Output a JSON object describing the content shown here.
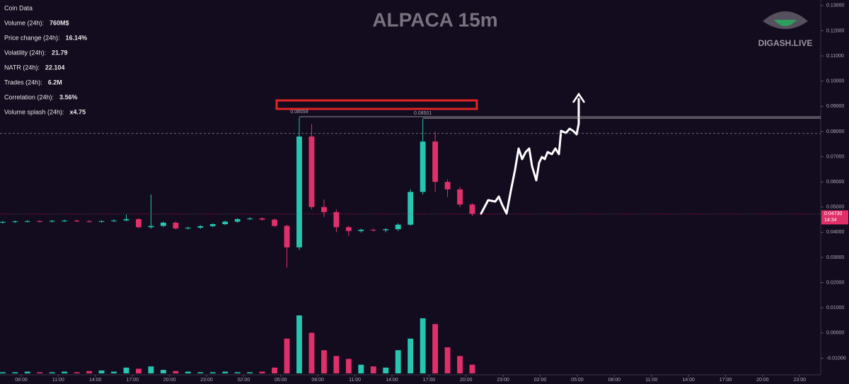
{
  "chart_data": {
    "type": "candlestick",
    "title": "ALPACA 15m",
    "watermark": "DIGASH.LIVE",
    "coin_data": {
      "title": "Coin Data",
      "rows": [
        {
          "label": "Volume (24h):",
          "value": "760M$",
          "color": "#4caf50"
        },
        {
          "label": "Price change (24h):",
          "value": "16.14%",
          "color": "#4caf50"
        },
        {
          "label": "Volatility (24h):",
          "value": "21.79",
          "color": "#4caf50"
        },
        {
          "label": "NATR (24h):",
          "value": "22.104",
          "color": "#4caf50"
        },
        {
          "label": "Trades (24h):",
          "value": "6.2M",
          "color": "#4caf50"
        },
        {
          "label": "Correlation (24h):",
          "value": "3.56%",
          "color": "#4caf50"
        },
        {
          "label": "Volume splash (24h):",
          "value": "x4.75",
          "color": "#e53935"
        }
      ]
    },
    "up_color": "#26c6b0",
    "down_color": "#e0306a",
    "x": [
      -1.5,
      -0.5,
      0.5,
      1.5,
      2.5,
      3.5,
      4.5,
      5.5,
      6.5,
      7.5,
      8.5,
      9.5,
      10.5,
      11.5,
      12.5,
      13.5,
      14.5,
      15.5,
      16.5,
      17.5,
      18.5,
      19.5,
      20.5,
      21.5,
      22.5,
      23.5,
      24.5,
      25.5,
      26.5,
      27.5,
      28.5,
      29.5,
      30.5,
      31.5,
      32.5,
      33.5,
      34.5,
      35.5,
      36.5
    ],
    "open": [
      0.0438,
      0.0441,
      0.0443,
      0.0444,
      0.0443,
      0.0445,
      0.0446,
      0.0444,
      0.0442,
      0.0444,
      0.0447,
      0.0452,
      0.042,
      0.0425,
      0.0438,
      0.0415,
      0.0418,
      0.0424,
      0.0432,
      0.0442,
      0.0452,
      0.0455,
      0.045,
      0.0425,
      0.034,
      0.078,
      0.05,
      0.048,
      0.042,
      0.0405,
      0.041,
      0.0408,
      0.0412,
      0.043,
      0.056,
      0.076,
      0.06,
      0.057,
      0.051
    ],
    "high": [
      0.0445,
      0.0447,
      0.0448,
      0.0448,
      0.0449,
      0.045,
      0.045,
      0.0448,
      0.0448,
      0.0451,
      0.047,
      0.0456,
      0.055,
      0.0442,
      0.0442,
      0.0422,
      0.0428,
      0.0436,
      0.0446,
      0.0456,
      0.0459,
      0.0459,
      0.0454,
      0.043,
      0.08559,
      0.083,
      0.053,
      0.049,
      0.0425,
      0.0414,
      0.0414,
      0.0416,
      0.0436,
      0.057,
      0.08501,
      0.08,
      0.061,
      0.058,
      0.0515
    ],
    "low": [
      0.0434,
      0.0437,
      0.0439,
      0.0439,
      0.0439,
      0.0441,
      0.044,
      0.0438,
      0.0438,
      0.044,
      0.0443,
      0.0416,
      0.0414,
      0.0421,
      0.0411,
      0.0411,
      0.0414,
      0.042,
      0.0428,
      0.0438,
      0.0448,
      0.0446,
      0.0421,
      0.026,
      0.033,
      0.049,
      0.046,
      0.04,
      0.0385,
      0.0398,
      0.0402,
      0.04,
      0.0405,
      0.0426,
      0.055,
      0.056,
      0.054,
      0.05,
      0.0465
    ],
    "close": [
      0.0441,
      0.0443,
      0.0444,
      0.0443,
      0.0445,
      0.0446,
      0.0444,
      0.0442,
      0.0444,
      0.0447,
      0.0452,
      0.042,
      0.0425,
      0.0438,
      0.0415,
      0.0418,
      0.0424,
      0.0432,
      0.0442,
      0.0452,
      0.0455,
      0.045,
      0.0425,
      0.034,
      0.078,
      0.05,
      0.048,
      0.042,
      0.0405,
      0.041,
      0.0408,
      0.0412,
      0.043,
      0.056,
      0.076,
      0.06,
      0.057,
      0.051,
      0.0473
    ],
    "volume": [
      2,
      2,
      3,
      2,
      2,
      3,
      2,
      4,
      5,
      3,
      10,
      8,
      12,
      6,
      4,
      3,
      2,
      2,
      3,
      2,
      2,
      3,
      10,
      60,
      100,
      70,
      40,
      30,
      25,
      15,
      12,
      10,
      40,
      60,
      95,
      85,
      45,
      30,
      15
    ],
    "volume_lim": [
      0,
      100
    ],
    "xlim": [
      -1.72,
      64.7
    ],
    "xticks": [
      {
        "value": 0,
        "label": "08:00"
      },
      {
        "value": 3,
        "label": "11:00"
      },
      {
        "value": 6,
        "label": "14:00"
      },
      {
        "value": 9,
        "label": "17:00"
      },
      {
        "value": 12,
        "label": "20:00"
      },
      {
        "value": 15,
        "label": "23:00"
      },
      {
        "value": 18,
        "label": "02:00"
      },
      {
        "value": 21,
        "label": "05:00"
      },
      {
        "value": 24,
        "label": "08:00"
      },
      {
        "value": 27,
        "label": "11:00"
      },
      {
        "value": 30,
        "label": "14:00"
      },
      {
        "value": 33,
        "label": "17:00"
      },
      {
        "value": 36,
        "label": "20:00"
      },
      {
        "value": 39,
        "label": "23:00"
      },
      {
        "value": 42,
        "label": "02:00"
      },
      {
        "value": 45,
        "label": "05:00"
      },
      {
        "value": 48,
        "label": "08:00"
      },
      {
        "value": 51,
        "label": "11:00"
      },
      {
        "value": 54,
        "label": "14:00"
      },
      {
        "value": 57,
        "label": "17:00"
      },
      {
        "value": 60,
        "label": "20:00"
      },
      {
        "value": 63,
        "label": "23:00"
      }
    ],
    "ylim": [
      -0.0166,
      0.1322
    ],
    "yticks": [
      {
        "value": -0.01,
        "label": "-0.01000"
      },
      {
        "value": 0,
        "label": "0.00000"
      },
      {
        "value": 0.01,
        "label": "0.01000"
      },
      {
        "value": 0.02,
        "label": "0.02000"
      },
      {
        "value": 0.03,
        "label": "0.03000"
      },
      {
        "value": 0.04,
        "label": "0.04000"
      },
      {
        "value": 0.05,
        "label": "0.05000"
      },
      {
        "value": 0.06,
        "label": "0.06000"
      },
      {
        "value": 0.07,
        "label": "0.07000"
      },
      {
        "value": 0.08,
        "label": "0.08000"
      },
      {
        "value": 0.09,
        "label": "0.09000"
      },
      {
        "value": 0.1,
        "label": "0.10000"
      },
      {
        "value": 0.11,
        "label": "0.11000"
      },
      {
        "value": 0.12,
        "label": "0.12000"
      },
      {
        "value": 0.13,
        "label": "0.13000"
      }
    ],
    "annotations": [
      {
        "x": 22.5,
        "value": 0.08559,
        "label": "0.08559"
      },
      {
        "x": 32.5,
        "value": 0.08501,
        "label": "0.08501"
      }
    ],
    "dashed_level": 0.0792,
    "last_price": {
      "value": 0.0473,
      "label": "0.04730",
      "time_left": "14:34"
    }
  }
}
